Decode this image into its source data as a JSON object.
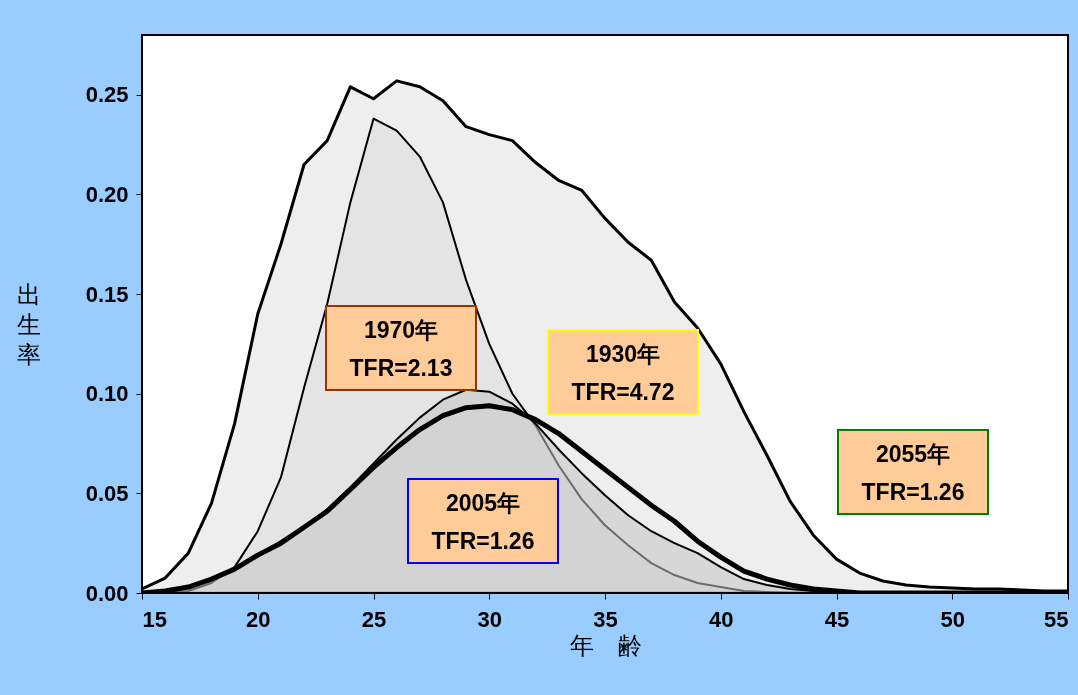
{
  "chart_data": {
    "type": "area",
    "x": [
      15,
      16,
      17,
      18,
      19,
      20,
      21,
      22,
      23,
      24,
      25,
      26,
      27,
      28,
      29,
      30,
      31,
      32,
      33,
      34,
      35,
      36,
      37,
      38,
      39,
      40,
      41,
      42,
      43,
      44,
      45,
      46,
      47,
      48,
      49,
      50,
      51,
      52,
      53,
      54,
      55
    ],
    "series": [
      {
        "type": "area",
        "color": "#eeeeee",
        "values": [
          0.002,
          0.0075,
          0.02,
          0.045,
          0.085,
          0.14,
          0.175,
          0.215,
          0.227,
          0.254,
          0.248,
          0.257,
          0.254,
          0.247,
          0.234,
          0.23,
          0.227,
          0.216,
          0.207,
          0.202,
          0.188,
          0.176,
          0.167,
          0.146,
          0.133,
          0.115,
          0.091,
          0.069,
          0.046,
          0.029,
          0.017,
          0.01,
          0.006,
          0.004,
          0.003,
          0.0025,
          0.002,
          0.002,
          0.0015,
          0.001,
          0.001
        ]
      },
      {
        "type": "area",
        "color": "#dddddd",
        "values": [
          0,
          0,
          0.001,
          0.005,
          0.013,
          0.031,
          0.058,
          0.103,
          0.145,
          0.196,
          0.238,
          0.232,
          0.219,
          0.196,
          0.157,
          0.125,
          0.1,
          0.084,
          0.064,
          0.047,
          0.034,
          0.024,
          0.015,
          0.009,
          0.005,
          0.003,
          0.001,
          0.0005,
          0,
          0,
          0,
          0,
          0,
          0,
          0,
          0,
          0,
          0,
          0,
          0,
          0
        ]
      },
      {
        "type": "area",
        "color": "#c4c4c4",
        "values": [
          0,
          0.001,
          0.003,
          0.007,
          0.012,
          0.019,
          0.026,
          0.033,
          0.042,
          0.053,
          0.065,
          0.077,
          0.088,
          0.097,
          0.102,
          0.101,
          0.095,
          0.085,
          0.072,
          0.06,
          0.049,
          0.039,
          0.031,
          0.025,
          0.02,
          0.013,
          0.007,
          0.004,
          0.002,
          0.001,
          0.0005,
          0,
          0,
          0,
          0,
          0,
          0,
          0,
          0,
          0,
          0
        ]
      },
      {
        "type": "line",
        "color": "#000000",
        "values": [
          0,
          0.001,
          0.003,
          0.007,
          0.012,
          0.019,
          0.025,
          0.033,
          0.041,
          0.052,
          0.063,
          0.073,
          0.082,
          0.089,
          0.093,
          0.094,
          0.092,
          0.087,
          0.08,
          0.071,
          0.062,
          0.053,
          0.044,
          0.036,
          0.026,
          0.018,
          0.011,
          0.007,
          0.004,
          0.002,
          0.001,
          0,
          0,
          0,
          0,
          0,
          0,
          0,
          0,
          0,
          0
        ]
      }
    ],
    "xlabel": "年　齢",
    "ylabel": "出生率",
    "xlim": [
      15,
      55
    ],
    "xticks": [
      15,
      20,
      25,
      30,
      35,
      40,
      45,
      50,
      55
    ],
    "ylim": [
      0,
      0.28
    ],
    "yticks": [
      {
        "value": 0,
        "label": "0.00"
      },
      {
        "value": 0.05,
        "label": "0.05"
      },
      {
        "value": 0.1,
        "label": "0.10"
      },
      {
        "value": 0.15,
        "label": "0.15"
      },
      {
        "value": 0.2,
        "label": "0.20"
      },
      {
        "value": 0.25,
        "label": "0.25"
      }
    ],
    "annotations": [
      "1970年\nTFR=2.13",
      "1930年\nTFR=4.72",
      "2005年\nTFR=1.26",
      "2055年\nTFR=1.26"
    ]
  }
}
